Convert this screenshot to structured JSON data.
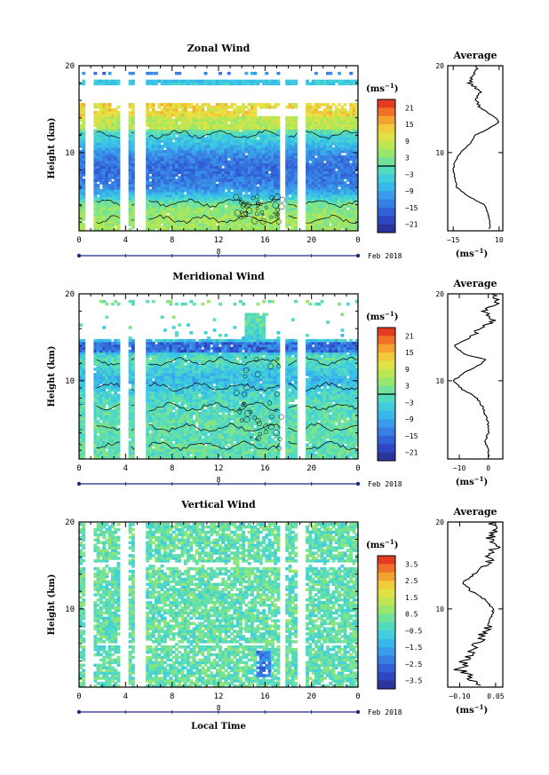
{
  "chart_data": [
    {
      "type": "heatmap",
      "title": "Zonal Wind",
      "ylabel": "Height (km)",
      "x_ticks": [
        "0",
        "4",
        "8",
        "12",
        "16",
        "20",
        "0"
      ],
      "y_ticks": [
        "20",
        "10"
      ],
      "xlim": [
        0,
        24
      ],
      "ylim": [
        1,
        20
      ],
      "date_label": "8",
      "month_label": "Feb 2018",
      "colorbar": {
        "unit": "(ms",
        "unit_exp": "−1",
        "unit_close": ")",
        "ticks": [
          "21",
          "15",
          "9",
          "3",
          "−3",
          "−9",
          "−15",
          "−21"
        ],
        "range": [
          -24,
          24
        ]
      },
      "profile": {
        "title": "Average",
        "x_ticks": [
          "−15",
          "10"
        ],
        "xlim": [
          -18,
          12
        ],
        "y_ticks": [
          "20",
          "10"
        ],
        "xlabel": "(ms",
        "xlabel_exp": "−1",
        "xlabel_close": ")",
        "heights": [
          1.2,
          2,
          3,
          4,
          5,
          6,
          7,
          8,
          9,
          10,
          11,
          12,
          12.5,
          13,
          13.5,
          14,
          15,
          16,
          17,
          18,
          19,
          20
        ],
        "values": [
          5,
          5,
          4,
          2,
          -7,
          -13,
          -14,
          -15,
          -14,
          -11,
          -6,
          -3,
          2,
          6,
          10,
          8,
          1,
          -3,
          0,
          -6,
          -4,
          -2
        ]
      }
    },
    {
      "type": "heatmap",
      "title": "Meridional Wind",
      "ylabel": "Height (km)",
      "x_ticks": [
        "0",
        "4",
        "8",
        "12",
        "16",
        "20",
        "0"
      ],
      "y_ticks": [
        "20",
        "10"
      ],
      "xlim": [
        0,
        24
      ],
      "ylim": [
        1,
        20
      ],
      "date_label": "8",
      "month_label": "Feb 2018",
      "colorbar": {
        "unit": "(ms",
        "unit_exp": "−1",
        "unit_close": ")",
        "ticks": [
          "21",
          "15",
          "9",
          "3",
          "−3",
          "−9",
          "−15",
          "−21"
        ],
        "range": [
          -24,
          24
        ]
      },
      "profile": {
        "title": "Average",
        "x_ticks": [
          "−10",
          "0"
        ],
        "xlim": [
          -14,
          5
        ],
        "y_ticks": [
          "20",
          "10"
        ],
        "xlabel": "(ms",
        "xlabel_exp": "−1",
        "xlabel_close": ")",
        "heights": [
          1.2,
          2,
          3,
          4,
          5,
          6,
          7,
          8,
          8.5,
          9,
          10,
          11,
          12,
          12.5,
          13,
          14,
          15,
          16,
          17,
          18,
          19,
          20
        ],
        "values": [
          0,
          0,
          -1,
          0,
          0,
          -1,
          -2,
          -4,
          -6,
          -9,
          -12,
          -8,
          -2,
          -1,
          -8,
          -12,
          -6,
          -3,
          2,
          -2,
          3,
          2
        ]
      }
    },
    {
      "type": "heatmap",
      "title": "Vertical Wind",
      "ylabel": "Height (km)",
      "xlabel": "Local Time",
      "x_ticks": [
        "0",
        "4",
        "8",
        "12",
        "16",
        "20",
        "0"
      ],
      "y_ticks": [
        "20",
        "10"
      ],
      "xlim": [
        0,
        24
      ],
      "ylim": [
        1,
        20
      ],
      "date_label": "8",
      "month_label": "Feb 2018",
      "colorbar": {
        "unit": "(ms",
        "unit_exp": "−1",
        "unit_close": ")",
        "ticks": [
          "3.5",
          "2.5",
          "1.5",
          "0.5",
          "−0.5",
          "−1.5",
          "−2.5",
          "−3.5"
        ],
        "range": [
          -4,
          4
        ]
      },
      "profile": {
        "title": "Average",
        "x_ticks": [
          "−0.10",
          "0.05"
        ],
        "xlim": [
          -0.15,
          0.08
        ],
        "y_ticks": [
          "20",
          "10"
        ],
        "xlabel": "(ms",
        "xlabel_exp": "−1",
        "xlabel_close": ")",
        "heights": [
          1.2,
          2,
          3,
          4,
          5,
          6,
          7,
          8,
          9,
          10,
          11,
          12,
          13,
          14,
          15,
          16,
          17,
          18,
          19,
          20
        ],
        "values": [
          0,
          -0.05,
          -0.1,
          -0.08,
          -0.06,
          -0.03,
          0,
          0.02,
          0.03,
          0.04,
          0.01,
          -0.05,
          -0.09,
          -0.04,
          0,
          0.03,
          0.05,
          0.02,
          0.05,
          0.03
        ]
      }
    }
  ]
}
